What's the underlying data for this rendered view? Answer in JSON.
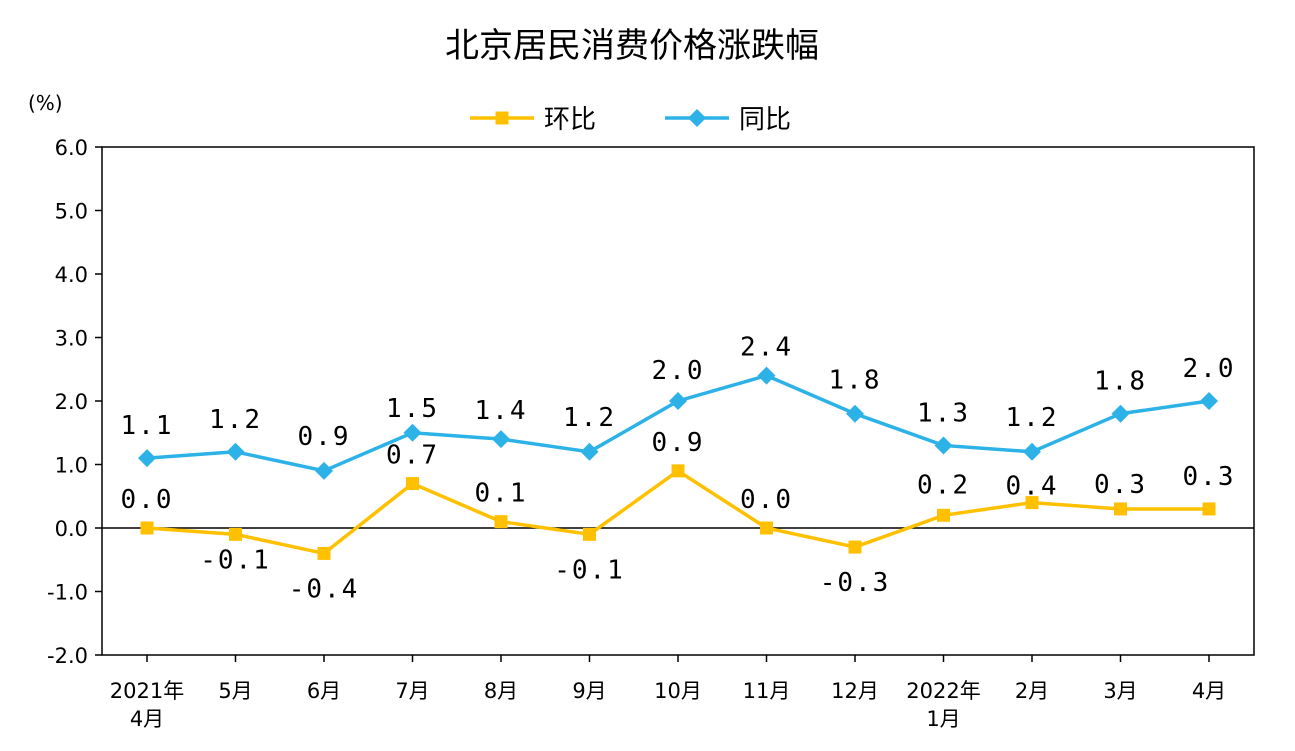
{
  "chart_data": {
    "type": "line",
    "title": "北京居民消费价格涨跌幅",
    "unit_label": "(%)",
    "categories": [
      [
        "2021年",
        "4月"
      ],
      [
        "5月"
      ],
      [
        "6月"
      ],
      [
        "7月"
      ],
      [
        "8月"
      ],
      [
        "9月"
      ],
      [
        "10月"
      ],
      [
        "11月"
      ],
      [
        "12月"
      ],
      [
        "2022年",
        "1月"
      ],
      [
        "2月"
      ],
      [
        "3月"
      ],
      [
        "4月"
      ]
    ],
    "ylim": [
      -2.0,
      6.0
    ],
    "yticks": [
      6.0,
      5.0,
      4.0,
      3.0,
      2.0,
      1.0,
      0.0,
      -1.0,
      -2.0
    ],
    "ytick_labels": [
      "6.0",
      "5.0",
      "4.0",
      "3.0",
      "2.0",
      "1.0",
      "0.0",
      "-1.0",
      "-2.0"
    ],
    "legend_position": "top-center",
    "grid": false,
    "series": [
      {
        "name": "环比",
        "color": "#FFC000",
        "marker": "square",
        "values": [
          0.0,
          -0.1,
          -0.4,
          0.7,
          0.1,
          -0.1,
          0.9,
          0.0,
          -0.3,
          0.2,
          0.4,
          0.3,
          0.3
        ],
        "labels": [
          "0.0",
          "-0.1",
          "-0.4",
          "0.7",
          "0.1",
          "-0.1",
          "0.9",
          "0.0",
          "-0.3",
          "0.2",
          "0.4",
          "0.3",
          "0.3"
        ]
      },
      {
        "name": "同比",
        "color": "#2DB2E8",
        "marker": "diamond",
        "values": [
          1.1,
          1.2,
          0.9,
          1.5,
          1.4,
          1.2,
          2.0,
          2.4,
          1.8,
          1.3,
          1.2,
          1.8,
          2.0
        ],
        "labels": [
          "1.1",
          "1.2",
          "0.9",
          "1.5",
          "1.4",
          "1.2",
          "2.0",
          "2.4",
          "1.8",
          "1.3",
          "1.2",
          "1.8",
          "2.0"
        ]
      }
    ]
  }
}
